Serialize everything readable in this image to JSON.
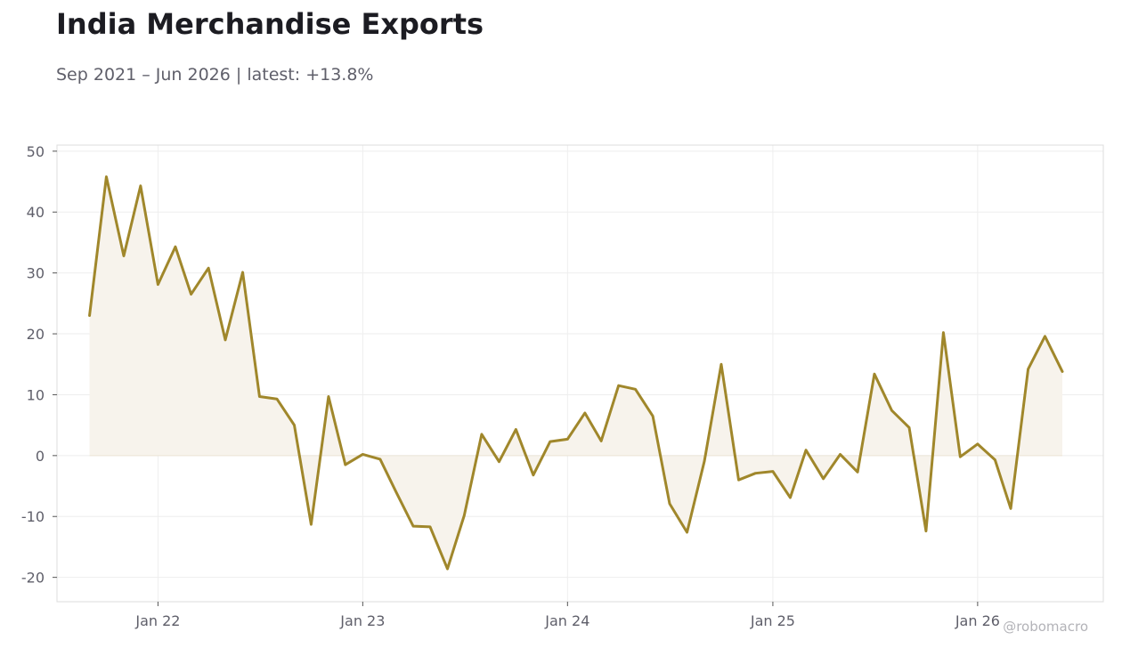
{
  "title": "India Merchandise Exports",
  "subtitle": "Sep 2021 – Jun 2026 | latest: +13.8%",
  "watermark": "@robomacro",
  "colors": {
    "line": "#a0872b",
    "fill": "#f7f3ec",
    "grid": "#eeeeee",
    "frame": "#dddddd",
    "text": "#5f5f6a"
  },
  "chart_data": {
    "type": "area",
    "title": "India Merchandise Exports",
    "subtitle": "Sep 2021 – Jun 2026 | latest: +13.8%",
    "xlabel": "",
    "ylabel": "",
    "ylim": [
      -24,
      51
    ],
    "xlim": [
      "2021-07-05",
      "2026-08-13"
    ],
    "yticks": [
      50,
      40,
      30,
      20,
      10,
      0,
      -10,
      -20
    ],
    "xticks": [
      {
        "date": "2022-01-01",
        "label": "Jan 22"
      },
      {
        "date": "2023-01-01",
        "label": "Jan 23"
      },
      {
        "date": "2024-01-01",
        "label": "Jan 24"
      },
      {
        "date": "2025-01-01",
        "label": "Jan 25"
      },
      {
        "date": "2026-01-01",
        "label": "Jan 26"
      }
    ],
    "grid": true,
    "baseline": 0,
    "series": [
      {
        "values": [
          {
            "date": "2021-09",
            "y": 23.0
          },
          {
            "date": "2021-10",
            "y": 45.8
          },
          {
            "date": "2021-11",
            "y": 32.8
          },
          {
            "date": "2021-12",
            "y": 44.3
          },
          {
            "date": "2022-01",
            "y": 28.1
          },
          {
            "date": "2022-02",
            "y": 34.3
          },
          {
            "date": "2022-03",
            "y": 26.5
          },
          {
            "date": "2022-04",
            "y": 30.8
          },
          {
            "date": "2022-05",
            "y": 19.0
          },
          {
            "date": "2022-06",
            "y": 30.1
          },
          {
            "date": "2022-07",
            "y": 9.7
          },
          {
            "date": "2022-08",
            "y": 9.3
          },
          {
            "date": "2022-09",
            "y": 5.0
          },
          {
            "date": "2022-10",
            "y": -11.3
          },
          {
            "date": "2022-11",
            "y": 9.7
          },
          {
            "date": "2022-12",
            "y": -1.5
          },
          {
            "date": "2023-01",
            "y": 0.2
          },
          {
            "date": "2023-02",
            "y": -0.6
          },
          {
            "date": "2023-03",
            "y": -5.9
          },
          {
            "date": "2023-04",
            "y": -11.6
          },
          {
            "date": "2023-05",
            "y": -11.7
          },
          {
            "date": "2023-06",
            "y": -18.6
          },
          {
            "date": "2023-07",
            "y": -9.8
          },
          {
            "date": "2023-08",
            "y": 3.5
          },
          {
            "date": "2023-09",
            "y": -1.0
          },
          {
            "date": "2023-10",
            "y": 4.3
          },
          {
            "date": "2023-11",
            "y": -3.2
          },
          {
            "date": "2023-12",
            "y": 2.3
          },
          {
            "date": "2024-01",
            "y": 2.7
          },
          {
            "date": "2024-02",
            "y": 7.0
          },
          {
            "date": "2024-03",
            "y": 2.4
          },
          {
            "date": "2024-04",
            "y": 11.5
          },
          {
            "date": "2024-05",
            "y": 10.9
          },
          {
            "date": "2024-06",
            "y": 6.5
          },
          {
            "date": "2024-07",
            "y": -7.9
          },
          {
            "date": "2024-08",
            "y": -12.6
          },
          {
            "date": "2024-09",
            "y": -0.9
          },
          {
            "date": "2024-10",
            "y": 15.0
          },
          {
            "date": "2024-11",
            "y": -4.0
          },
          {
            "date": "2024-12",
            "y": -2.9
          },
          {
            "date": "2025-01",
            "y": -2.6
          },
          {
            "date": "2025-02",
            "y": -6.9
          },
          {
            "date": "2025-03",
            "y": 0.9
          },
          {
            "date": "2025-04",
            "y": -3.8
          },
          {
            "date": "2025-05",
            "y": 0.2
          },
          {
            "date": "2025-06",
            "y": -2.7
          },
          {
            "date": "2025-07",
            "y": 13.4
          },
          {
            "date": "2025-08",
            "y": 7.4
          },
          {
            "date": "2025-09",
            "y": 4.6
          },
          {
            "date": "2025-10",
            "y": -12.4
          },
          {
            "date": "2025-11",
            "y": 20.2
          },
          {
            "date": "2025-12",
            "y": -0.2
          },
          {
            "date": "2026-01",
            "y": 1.9
          },
          {
            "date": "2026-02",
            "y": -0.7
          },
          {
            "date": "2026-03",
            "y": -8.7
          },
          {
            "date": "2026-04",
            "y": 14.2
          },
          {
            "date": "2026-05",
            "y": 19.6
          },
          {
            "date": "2026-06",
            "y": 13.8
          }
        ]
      }
    ]
  }
}
